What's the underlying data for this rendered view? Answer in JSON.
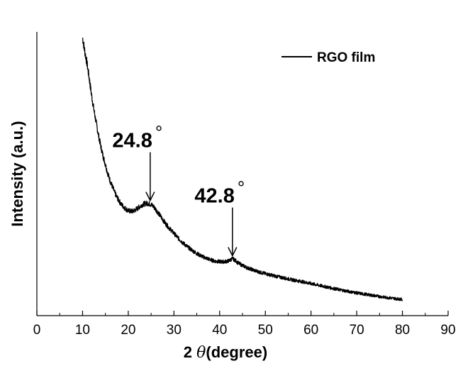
{
  "chart_data": {
    "type": "line",
    "title": "",
    "xlabel": "2 θ(degree)",
    "xlabel_prefix": "2 ",
    "xlabel_symbol": "θ",
    "xlabel_suffix": "(degree)",
    "ylabel": "Intensity (a.u.)",
    "xlim": [
      0,
      90
    ],
    "ylim": [
      0,
      100
    ],
    "xticks": [
      "0",
      "10",
      "20",
      "30",
      "40",
      "50",
      "60",
      "70",
      "80",
      "90"
    ],
    "yticks": [],
    "grid": false,
    "legend": {
      "position": "top-right"
    },
    "series": [
      {
        "name": "RGO film",
        "color": "#000000",
        "x": [
          10,
          10.5,
          11,
          11.5,
          12,
          12.5,
          13,
          13.5,
          14,
          14.5,
          15,
          15.5,
          16,
          16.5,
          17,
          17.5,
          18,
          18.5,
          19,
          19.5,
          20,
          20.5,
          21,
          21.5,
          22,
          22.5,
          23,
          23.5,
          24,
          24.5,
          25,
          25.5,
          26,
          26.5,
          27,
          27.5,
          28,
          29,
          30,
          31,
          32,
          33,
          34,
          35,
          36,
          37,
          38,
          39,
          40,
          41,
          42,
          42.8,
          43.5,
          44,
          45,
          46,
          47,
          48,
          49,
          50,
          52,
          54,
          56,
          58,
          60,
          62,
          64,
          66,
          68,
          70,
          72,
          74,
          76,
          78,
          80
        ],
        "values": [
          98,
          93,
          88.7,
          83.2,
          77.4,
          72.4,
          67.8,
          63.5,
          59.6,
          56.2,
          53.3,
          50.2,
          47.7,
          45.6,
          43.5,
          41.8,
          40.4,
          39.2,
          38.3,
          37.6,
          37,
          36.8,
          36.8,
          37.2,
          37.8,
          38.4,
          39,
          39.4,
          39.6,
          39.5,
          39.2,
          38.5,
          37.5,
          36.4,
          35.2,
          34,
          32.8,
          30.8,
          29,
          27.2,
          25.6,
          24.2,
          23,
          21.9,
          21,
          20.3,
          19.7,
          19.2,
          19,
          19,
          19.3,
          20.1,
          19.4,
          18.6,
          17.7,
          16.9,
          16.3,
          15.7,
          15.2,
          14.8,
          14,
          13.3,
          12.6,
          12,
          11.3,
          10.6,
          9.9,
          9.2,
          8.6,
          8,
          7.5,
          7,
          6.5,
          6.1,
          5.7
        ]
      }
    ],
    "annotations": [
      {
        "text": "24.8°",
        "label": "24.8",
        "x": 24.8,
        "y": 39.6
      },
      {
        "text": "42.8°",
        "label": "42.8",
        "x": 42.8,
        "y": 20.1
      }
    ],
    "degree_glyph": "°"
  }
}
